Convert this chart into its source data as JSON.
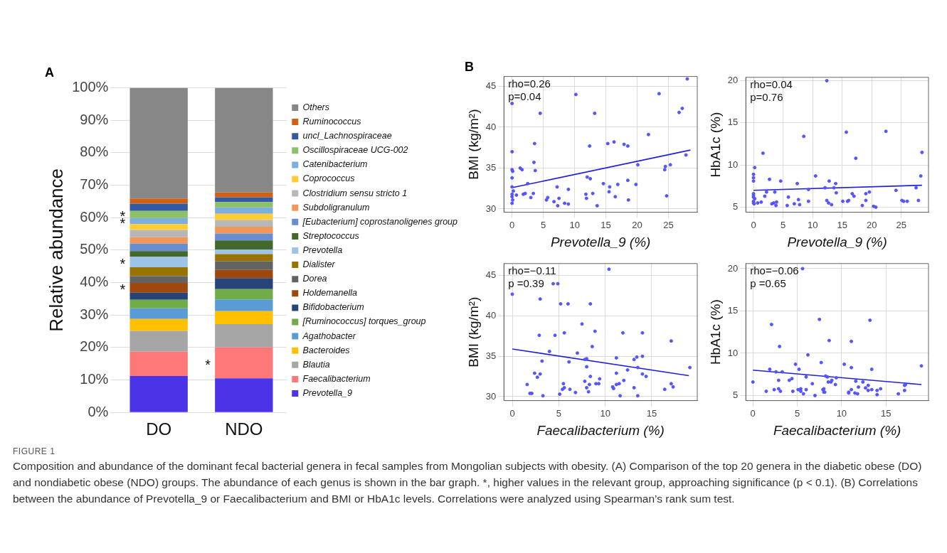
{
  "chart_data": [
    {
      "type": "bar",
      "title": "A",
      "stacked": true,
      "categories": [
        "DO",
        "NDO"
      ],
      "ylabel": "Relative abundance",
      "ylim": [
        0,
        100
      ],
      "yticks": [
        {
          "value": 0,
          "label": "0%"
        },
        {
          "value": 10,
          "label": "10%"
        },
        {
          "value": 20,
          "label": "20%"
        },
        {
          "value": 30,
          "label": "30%"
        },
        {
          "value": 40,
          "label": "40%"
        },
        {
          "value": 50,
          "label": "50%"
        },
        {
          "value": 60,
          "label": "60%"
        },
        {
          "value": 70,
          "label": "70%"
        },
        {
          "value": 80,
          "label": "80%"
        },
        {
          "value": 90,
          "label": "90%"
        },
        {
          "value": 100,
          "label": "100%"
        }
      ],
      "grid": "y",
      "legend": "right",
      "series": [
        {
          "name": "Prevotella_9",
          "color": "#4b33e8",
          "values": [
            11.2,
            10.5
          ]
        },
        {
          "name": "Faecalibacterium",
          "color": "#ff7878",
          "values": [
            7.5,
            9.6
          ],
          "value_labels": [
            null,
            "*"
          ]
        },
        {
          "name": "Blautia",
          "color": "#a6a6a6",
          "values": [
            6.4,
            7.1
          ]
        },
        {
          "name": "Bacteroides",
          "color": "#ffc000",
          "values": [
            3.7,
            4.0
          ]
        },
        {
          "name": "Agathobacter",
          "color": "#5b9bd5",
          "values": [
            3.3,
            3.6
          ]
        },
        {
          "name": "[Ruminococcus] torques_group",
          "color": "#70ad47",
          "values": [
            2.6,
            3.2
          ]
        },
        {
          "name": "Bifidobacterium",
          "color": "#264478",
          "values": [
            2.2,
            3.4
          ]
        },
        {
          "name": "Holdemanella",
          "color": "#9e480e",
          "values": [
            3.0,
            2.5
          ],
          "value_labels": [
            "*",
            null
          ]
        },
        {
          "name": "Dorea",
          "color": "#636363",
          "values": [
            2.1,
            2.7
          ]
        },
        {
          "name": "Dialister",
          "color": "#997300",
          "values": [
            2.7,
            2.2
          ]
        },
        {
          "name": "Prevotella",
          "color": "#9dc3e6",
          "values": [
            3.3,
            1.4
          ],
          "value_labels": [
            "*",
            null
          ]
        },
        {
          "name": "Streptococcus",
          "color": "#43682b",
          "values": [
            1.7,
            2.8
          ]
        },
        {
          "name": "[Eubacterium] coprostanoligenes group",
          "color": "#698ed0",
          "values": [
            2.3,
            2.1
          ]
        },
        {
          "name": "Subdoligranulum",
          "color": "#f1975a",
          "values": [
            2.0,
            2.1
          ]
        },
        {
          "name": "Clostridium sensu stricto 1",
          "color": "#b7b7b7",
          "values": [
            2.2,
            2.1
          ]
        },
        {
          "name": "Coprococcus",
          "color": "#ffcd33",
          "values": [
            1.8,
            1.9
          ]
        },
        {
          "name": "Catenibacterium",
          "color": "#7cafdd",
          "values": [
            1.9,
            2.0
          ],
          "value_labels": [
            "*",
            null
          ]
        },
        {
          "name": "Oscillospiraceae UCG-002",
          "color": "#8cc168",
          "values": [
            2.2,
            1.6
          ],
          "value_labels": [
            "*",
            null
          ]
        },
        {
          "name": "uncl_Lachnospiraceae",
          "color": "#335aa1",
          "values": [
            2.2,
            1.5
          ]
        },
        {
          "name": "Ruminococcus",
          "color": "#d26012",
          "values": [
            1.6,
            1.5
          ]
        },
        {
          "name": "Others",
          "color": "#878787",
          "values": [
            34.1,
            32.2
          ]
        }
      ]
    },
    {
      "type": "scatter",
      "title": "B",
      "xlabel": "Prevotella_9 (%)",
      "ylabel": "BMI (kg/m²)",
      "xlim": [
        -1.3,
        29.6
      ],
      "ylim": [
        29.6,
        46.2
      ],
      "xticks": [
        0,
        5,
        10,
        15,
        20,
        25
      ],
      "yticks": [
        30,
        35,
        40,
        45
      ],
      "grid": true,
      "annotations": [
        "rho=0.26",
        "p=0.04"
      ],
      "series": [
        {
          "color": "#5555ff",
          "marker": "circle",
          "x": [
            0,
            0,
            0,
            0.1,
            0,
            0,
            0.2,
            0,
            0,
            0.1,
            0,
            0.7,
            1.3,
            1.6,
            1.8,
            2.1,
            2.5,
            3.0,
            3.4,
            3.5,
            3.6,
            3.7,
            4.5,
            5.5,
            5.7,
            6.7,
            7.2,
            7.3,
            7.5,
            8.4,
            9.0,
            9.0,
            10.2,
            11.8,
            11.9,
            12.0,
            12.4,
            12.5,
            12.9,
            13.2,
            13.6,
            14.6,
            15.3,
            15.5,
            15.6,
            16.3,
            16.5,
            16.9,
            17.9,
            18.5,
            18.5,
            18.6,
            19.8,
            20.1,
            21.8,
            23.5,
            24.4,
            24.5,
            24.7,
            25.3,
            26.7,
            27.2,
            27.8,
            28.0
          ],
          "values": [
            42.9,
            37.0,
            34.8,
            34.6,
            33.8,
            32.7,
            32.2,
            31.8,
            31.5,
            31.1,
            30.7,
            31.7,
            35.0,
            34.8,
            31.8,
            31.9,
            33.1,
            31.4,
            31.9,
            35.7,
            38.0,
            34.7,
            41.7,
            31.1,
            31.4,
            30.9,
            32.7,
            30.4,
            31.3,
            30.7,
            30.6,
            32.4,
            44.0,
            31.8,
            31.3,
            33.9,
            37.7,
            33.7,
            31.9,
            41.7,
            30.4,
            33.1,
            38.0,
            32.1,
            32.7,
            38.2,
            31.5,
            33.0,
            37.9,
            37.7,
            33.5,
            31.1,
            33.0,
            35.4,
            39.1,
            44.1,
            34.8,
            35.2,
            31.6,
            35.4,
            41.8,
            42.3,
            36.6,
            45.9
          ]
        },
        {
          "type": "line",
          "color": "#1f1fe0",
          "marker": "none",
          "x": [
            0,
            28.5
          ],
          "values": [
            32.6,
            37.2
          ]
        }
      ]
    },
    {
      "type": "scatter",
      "xlabel": "Prevotella_9 (%)",
      "ylabel": "HbA1c (%)",
      "xlim": [
        -1.3,
        29.6
      ],
      "ylim": [
        4.4,
        20.4
      ],
      "xticks": [
        0,
        5,
        10,
        15,
        20,
        25
      ],
      "yticks": [
        5,
        10,
        15,
        20
      ],
      "grid": true,
      "annotations": [
        "rho=0.04",
        "p=0.76"
      ],
      "series": [
        {
          "color": "#5555ff",
          "marker": "circle",
          "x": [
            0,
            0,
            0,
            0.2,
            0,
            0,
            0,
            0.2,
            0,
            0,
            0.1,
            0.7,
            1.3,
            1.6,
            1.9,
            2.2,
            2.7,
            3.1,
            3.4,
            3.6,
            3.8,
            3.9,
            4.6,
            5.7,
            5.9,
            6.9,
            7.4,
            7.6,
            7.8,
            8.5,
            9.3,
            9.3,
            10.5,
            12.1,
            12.4,
            12.7,
            12.8,
            13.2,
            13.6,
            13.9,
            14.0,
            15.1,
            15.7,
            15.9,
            16.1,
            16.7,
            17.0,
            17.3,
            18.4,
            19.0,
            19.0,
            19.6,
            20.3,
            20.7,
            22.4,
            24.1,
            25.1,
            25.4,
            26.0,
            27.5,
            27.9,
            28.3,
            28.5,
            12.4
          ],
          "values": [
            8.9,
            8.5,
            8.1,
            9.7,
            6.6,
            6.4,
            6.2,
            6.0,
            5.7,
            5.5,
            5.4,
            5.5,
            5.6,
            11.4,
            6.3,
            6.8,
            8.3,
            5.4,
            5.5,
            6.8,
            5.2,
            5.6,
            8.1,
            5.2,
            6.2,
            5.4,
            7.8,
            5.9,
            5.3,
            13.4,
            5.7,
            7.1,
            8.7,
            7.3,
            5.8,
            5.5,
            8.1,
            5.3,
            7.3,
            7.8,
            6.7,
            5.7,
            13.9,
            5.7,
            5.8,
            6.6,
            6.3,
            10.8,
            5.2,
            5.8,
            6.6,
            6.8,
            5.1,
            5.0,
            14.0,
            7.0,
            5.8,
            5.7,
            5.7,
            7.3,
            5.8,
            8.7,
            11.5,
            20.0
          ]
        },
        {
          "type": "line",
          "color": "#1f1fe0",
          "marker": "none",
          "x": [
            0,
            28.5
          ],
          "values": [
            7.0,
            7.6
          ]
        }
      ]
    },
    {
      "type": "scatter",
      "xlabel": "Faecalibacterium (%)",
      "ylabel": "BMI (kg/m²)",
      "xlim": [
        -0.9,
        19.9
      ],
      "ylim": [
        29.5,
        46.5
      ],
      "xticks": [
        0,
        5,
        10,
        15
      ],
      "yticks": [
        30,
        35,
        40,
        45
      ],
      "grid": true,
      "annotations": [
        "rho=−0.11",
        "p =0.39"
      ],
      "series": [
        {
          "color": "#5555ff",
          "marker": "circle",
          "x": [
            0,
            10.4,
            4.4,
            4.9,
            3.0,
            5.2,
            6.0,
            8.4,
            7.5,
            8.9,
            2.9,
            4.6,
            5.6,
            11.9,
            14.0,
            17.1,
            8.6,
            4.0,
            7.0,
            8.0,
            7.8,
            6.1,
            3.2,
            11.2,
            13.1,
            13.4,
            14.0,
            8.0,
            13.5,
            12.4,
            19.1,
            2.4,
            2.7,
            3.0,
            11.2,
            14.0,
            14.4,
            8.4,
            9.4,
            1.6,
            7.8,
            8.3,
            9.0,
            9.3,
            5.5,
            5.6,
            5.4,
            6.2,
            8.0,
            8.2,
            6.8,
            5.1,
            1.9,
            2.1,
            3.3,
            10.8,
            10.9,
            11.2,
            11.5,
            12.0,
            11.6,
            13.5,
            13.1,
            16.4,
            17.1,
            17.3
          ],
          "values": [
            42.7,
            45.8,
            44.0,
            44.0,
            42.1,
            41.5,
            41.5,
            41.5,
            39.0,
            38.1,
            37.6,
            37.6,
            37.9,
            37.9,
            37.9,
            36.9,
            36.2,
            35.6,
            35.4,
            34.7,
            34.6,
            34.3,
            34.4,
            34.8,
            34.6,
            34.9,
            35.0,
            33.7,
            33.6,
            33.3,
            33.6,
            32.9,
            32.4,
            32.8,
            32.9,
            32.8,
            32.5,
            32.5,
            32.2,
            31.5,
            31.9,
            31.5,
            31.6,
            31.6,
            31.6,
            31.1,
            30.9,
            30.9,
            31.1,
            30.6,
            30.5,
            30.3,
            30.4,
            30.4,
            30.1,
            31.2,
            31.0,
            31.5,
            31.6,
            32.0,
            30.1,
            30.1,
            31.1,
            30.9,
            31.6,
            31.2
          ]
        },
        {
          "type": "line",
          "color": "#1f1fe0",
          "marker": "none",
          "x": [
            0,
            19.0
          ],
          "values": [
            35.9,
            32.6
          ]
        }
      ]
    },
    {
      "type": "scatter",
      "xlabel": "Faecalibacterium (%)",
      "ylabel": "HbA1c (%)",
      "xlim": [
        -0.8,
        19.8
      ],
      "ylim": [
        4.4,
        20.6
      ],
      "xticks": [
        0,
        5,
        10,
        15
      ],
      "yticks": [
        5,
        10,
        15,
        20
      ],
      "grid": true,
      "annotations": [
        "rho=−0.06",
        "p =0.65"
      ],
      "series": [
        {
          "color": "#5555ff",
          "marker": "circle",
          "x": [
            0,
            5.6,
            2.1,
            7.5,
            13.2,
            8.6,
            11.1,
            3.0,
            6.2,
            7.7,
            4.8,
            10.3,
            19.0,
            1.9,
            5.2,
            11.1,
            13.4,
            2.6,
            3.3,
            8.2,
            8.4,
            9.4,
            6.0,
            4.4,
            4.1,
            2.9,
            8.9,
            8.5,
            8.8,
            11.6,
            12.4,
            6.7,
            9.3,
            13.0,
            11.9,
            12.7,
            2.9,
            2.4,
            1.5,
            3.1,
            4.5,
            5.1,
            5.4,
            5.4,
            5.7,
            6.0,
            7.0,
            7.9,
            8.0,
            8.0,
            8.1,
            10.8,
            10.8,
            11.1,
            11.5,
            11.8,
            13.0,
            13.4,
            14.0,
            14.0,
            14.4,
            16.4,
            17.1,
            17.1,
            17.2
          ],
          "values": [
            6.6,
            20.0,
            13.4,
            14.0,
            13.9,
            11.5,
            11.4,
            10.8,
            9.8,
            8.9,
            8.7,
            8.7,
            8.5,
            8.1,
            8.1,
            8.3,
            8.1,
            7.8,
            7.8,
            7.3,
            7.2,
            7.1,
            7.2,
            7.0,
            6.8,
            6.8,
            6.8,
            6.6,
            6.6,
            6.7,
            6.6,
            6.4,
            6.3,
            6.2,
            6.0,
            5.9,
            5.8,
            5.7,
            5.5,
            5.5,
            5.5,
            5.7,
            5.8,
            5.5,
            5.2,
            5.7,
            5.0,
            5.7,
            5.8,
            5.4,
            5.4,
            5.4,
            5.3,
            5.7,
            5.3,
            5.2,
            5.6,
            5.7,
            5.6,
            5.1,
            5.8,
            5.2,
            5.6,
            6.2,
            6.3
          ]
        },
        {
          "type": "line",
          "color": "#1f1fe0",
          "marker": "none",
          "x": [
            0,
            19.0
          ],
          "values": [
            8.0,
            6.3
          ]
        }
      ]
    },
    {
      "type": "other",
      "title": "FIGURE 1",
      "annotations": [
        "Composition and abundance of the dominant fecal bacterial genera in fecal samples from Mongolian subjects with obesity. (A) Comparison of the top 20 genera in the diabetic obese (DO) and nondiabetic obese (NDO) groups. The abundance of each genus is shown in the bar graph. *, higher values in the relevant group, approaching significance (p < 0.1). (B) Correlations between the abundance of Prevotella_9 or Faecalibacterium and BMI or HbA1c levels. Correlations were analyzed using Spearman’s rank sum test."
      ]
    }
  ]
}
